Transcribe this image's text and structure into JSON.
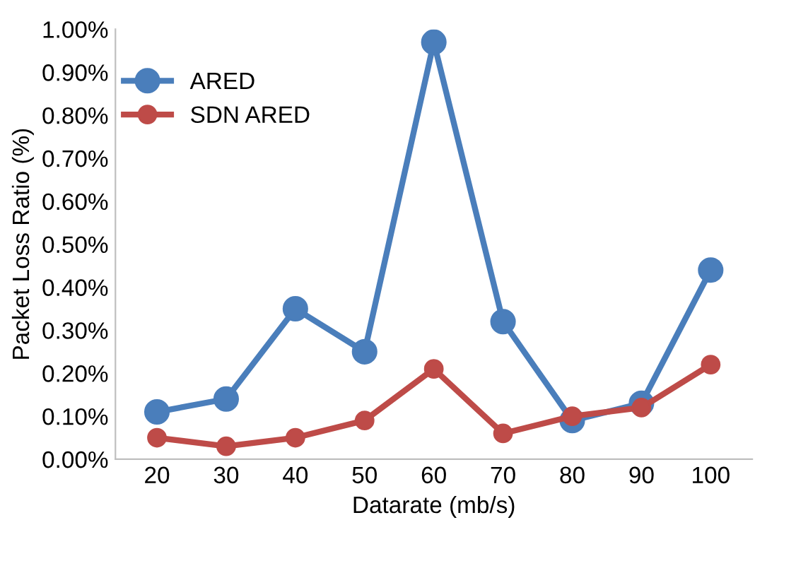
{
  "chart_data": {
    "type": "line",
    "xlabel": "Datarate (mb/s)",
    "ylabel": "Packet Loss Ratio (%)",
    "categories": [
      "20",
      "30",
      "40",
      "50",
      "60",
      "70",
      "80",
      "90",
      "100"
    ],
    "series": [
      {
        "name": "ARED",
        "color": "#4a7ebb",
        "values": [
          0.11,
          0.14,
          0.35,
          0.25,
          0.97,
          0.32,
          0.09,
          0.13,
          0.44
        ]
      },
      {
        "name": "SDN ARED",
        "color": "#be4b48",
        "values": [
          0.05,
          0.03,
          0.05,
          0.09,
          0.21,
          0.06,
          0.1,
          0.12,
          0.22
        ]
      }
    ],
    "ylim": [
      0,
      1.0
    ],
    "yticks": [
      {
        "value": 0,
        "label": "0.00%"
      },
      {
        "value": 0.1,
        "label": "0.10%"
      },
      {
        "value": 0.2,
        "label": "0.20%"
      },
      {
        "value": 0.3,
        "label": "0.30%"
      },
      {
        "value": 0.4,
        "label": "0.40%"
      },
      {
        "value": 0.5,
        "label": "0.50%"
      },
      {
        "value": 0.6,
        "label": "0.60%"
      },
      {
        "value": 0.7,
        "label": "0.70%"
      },
      {
        "value": 0.8,
        "label": "0.80%"
      },
      {
        "value": 0.9,
        "label": "0.90%"
      },
      {
        "value": 1.0,
        "label": "1.00%"
      }
    ],
    "grid": false,
    "legend": "top left",
    "marker": "circle",
    "line_style": "solid"
  }
}
